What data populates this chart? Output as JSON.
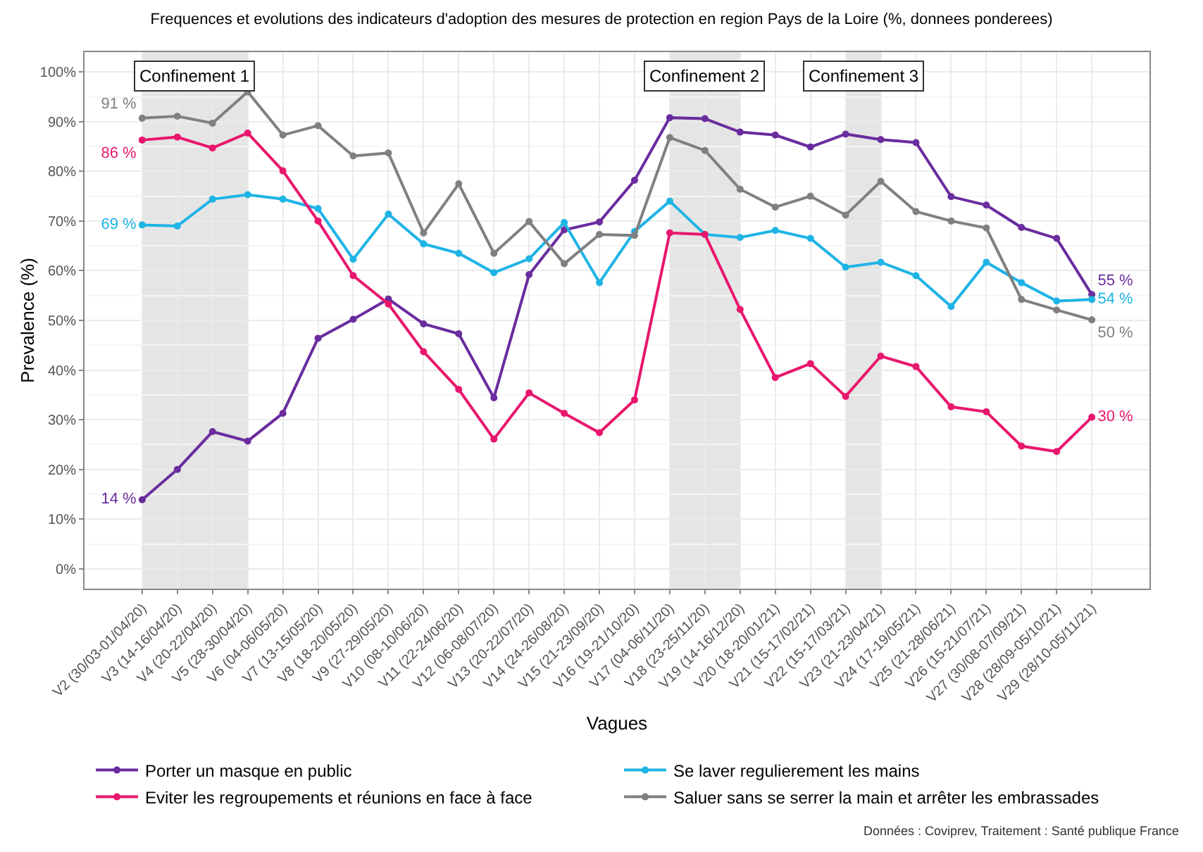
{
  "chart_data": {
    "type": "line",
    "title": "Frequences et evolutions des indicateurs d'adoption des mesures de protection en region Pays de la Loire (%, donnees ponderees)",
    "xlabel": "Vagues",
    "ylabel": "Prevalence (%)",
    "categories": [
      "V2 (30/03-01/04/20)",
      "V3 (14-16/04/20)",
      "V4 (20-22/04/20)",
      "V5 (28-30/04/20)",
      "V6 (04-06/05/20)",
      "V7 (13-15/05/20)",
      "V8 (18-20/05/20)",
      "V9 (27-29/05/20)",
      "V10 (08-10/06/20)",
      "V11 (22-24/06/20)",
      "V12 (06-08/07/20)",
      "V13 (20-22/07/20)",
      "V14 (24-26/08/20)",
      "V15 (21-23/09/20)",
      "V16 (19-21/10/20)",
      "V17 (04-06/11/20)",
      "V18 (23-25/11/20)",
      "V19 (14-16/12/20)",
      "V20 (18-20/01/21)",
      "V21 (15-17/02/21)",
      "V22 (15-17/03/21)",
      "V23 (21-23/04/21)",
      "V24 (17-19/05/21)",
      "V25 (21-28/06/21)",
      "V26 (15-21/07/21)",
      "V27 (30/08-07/09/21)",
      "V28 (28/09-05/10/21)",
      "V29 (28/10-05/11/21)"
    ],
    "series": [
      {
        "name": "Porter un masque en public",
        "color": "#6a2c9e",
        "values": [
          13.9,
          20.0,
          27.6,
          25.7,
          31.3,
          46.4,
          50.2,
          54.3,
          49.3,
          47.3,
          34.4,
          59.2,
          68.2,
          69.8,
          78.2,
          90.8,
          90.6,
          87.9,
          87.3,
          84.9,
          87.5,
          86.4,
          85.8,
          74.9,
          73.2,
          68.7,
          66.5,
          55.2
        ],
        "value_labels": [
          "14 %",
          null,
          null,
          null,
          null,
          null,
          null,
          null,
          null,
          null,
          null,
          null,
          null,
          null,
          null,
          null,
          null,
          null,
          null,
          null,
          null,
          null,
          null,
          null,
          null,
          null,
          null,
          "55 %"
        ]
      },
      {
        "name": "Se laver regulierement les mains",
        "color": "#1fb4e6",
        "values": [
          69.2,
          69.0,
          74.4,
          75.3,
          74.4,
          72.5,
          62.3,
          71.4,
          65.4,
          63.5,
          59.6,
          62.4,
          69.7,
          57.6,
          67.9,
          74.0,
          67.3,
          66.7,
          68.1,
          66.5,
          60.7,
          61.7,
          59.0,
          52.8,
          61.7,
          57.6,
          53.9,
          54.2
        ],
        "value_labels": [
          "69 %",
          null,
          null,
          null,
          null,
          null,
          null,
          null,
          null,
          null,
          null,
          null,
          null,
          null,
          null,
          null,
          null,
          null,
          null,
          null,
          null,
          null,
          null,
          null,
          null,
          null,
          null,
          "54 %"
        ]
      },
      {
        "name": "Eviter les regroupements et réunions en face à face",
        "color": "#e8176e",
        "values": [
          86.3,
          86.9,
          84.7,
          87.7,
          80.1,
          70.0,
          59.0,
          53.3,
          43.7,
          36.1,
          26.1,
          35.4,
          31.3,
          27.4,
          34.0,
          67.6,
          67.3,
          52.2,
          38.5,
          41.3,
          34.7,
          42.8,
          40.7,
          32.6,
          31.6,
          24.7,
          23.6,
          30.5
        ],
        "value_labels": [
          "86 %",
          null,
          null,
          null,
          null,
          null,
          null,
          null,
          null,
          null,
          null,
          null,
          null,
          null,
          null,
          null,
          null,
          null,
          null,
          null,
          null,
          null,
          null,
          null,
          null,
          null,
          null,
          "30 %"
        ]
      },
      {
        "name": "Saluer sans se serrer la main et arrêter les embrassades",
        "color": "#808080",
        "values": [
          90.7,
          91.1,
          89.7,
          96.0,
          87.3,
          89.2,
          83.1,
          83.7,
          67.6,
          77.5,
          63.5,
          69.9,
          61.4,
          67.3,
          67.1,
          86.8,
          84.2,
          76.4,
          72.8,
          75.0,
          71.2,
          78.0,
          71.9,
          70.0,
          68.6,
          54.2,
          52.1,
          50.1
        ],
        "value_labels": [
          "91 %",
          null,
          null,
          null,
          null,
          null,
          null,
          null,
          null,
          null,
          null,
          null,
          null,
          null,
          null,
          null,
          null,
          null,
          null,
          null,
          null,
          null,
          null,
          null,
          null,
          null,
          null,
          "50 %"
        ]
      }
    ],
    "bands": [
      {
        "axis": "x",
        "from": "V2 (30/03-01/04/20)",
        "to": "V5 (28-30/04/20)",
        "label": "Confinement 1",
        "color": "#e5e5e5"
      },
      {
        "axis": "x",
        "from": "V17 (04-06/11/20)",
        "to": "V19 (14-16/12/20)",
        "label": "Confinement 2",
        "color": "#e5e5e5"
      },
      {
        "axis": "x",
        "from": "V22 (15-17/03/21)",
        "to": "V23 (21-23/04/21)",
        "label": "Confinement 3",
        "color": "#e5e5e5"
      }
    ],
    "ylim": [
      -4,
      104
    ],
    "yticks": [
      {
        "value": 0,
        "label": "0%"
      },
      {
        "value": 10,
        "label": "10%"
      },
      {
        "value": 20,
        "label": "20%"
      },
      {
        "value": 30,
        "label": "30%"
      },
      {
        "value": 40,
        "label": "40%"
      },
      {
        "value": 50,
        "label": "50%"
      },
      {
        "value": 60,
        "label": "60%"
      },
      {
        "value": 70,
        "label": "70%"
      },
      {
        "value": 80,
        "label": "80%"
      },
      {
        "value": 90,
        "label": "90%"
      },
      {
        "value": 100,
        "label": "100%"
      }
    ],
    "grid": true,
    "legend": "bottom",
    "marker": "circle",
    "line_style": "solid",
    "annotations": [
      "Données : Coviprev, Traitement : Santé publique France"
    ]
  }
}
